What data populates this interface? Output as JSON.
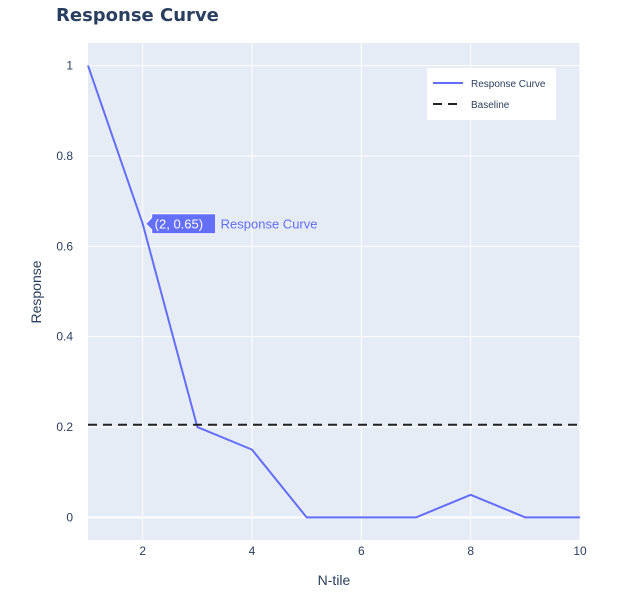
{
  "chart_data": {
    "type": "line",
    "title": "Response Curve",
    "xlabel": "N-tile",
    "ylabel": "Response",
    "xlim": [
      1,
      10
    ],
    "ylim": [
      -0.05,
      1.05
    ],
    "x_ticks": [
      2,
      4,
      6,
      8,
      10
    ],
    "y_ticks": [
      0,
      0.2,
      0.4,
      0.6,
      0.8,
      1
    ],
    "grid": true,
    "legend_position": "top-right",
    "series": [
      {
        "name": "Response Curve",
        "style": "solid",
        "color": "#636efa",
        "x": [
          1,
          2,
          3,
          4,
          5,
          6,
          7,
          8,
          9,
          10
        ],
        "y": [
          1,
          0.65,
          0.2,
          0.15,
          0,
          0,
          0,
          0.05,
          0,
          0
        ]
      },
      {
        "name": "Baseline",
        "style": "dashed",
        "color": "#222222",
        "x": [
          1,
          10
        ],
        "y": [
          0.205,
          0.205
        ]
      }
    ],
    "hover": {
      "x": 2,
      "y": 0.65,
      "label": "(2, 0.65)",
      "series_name": "Response Curve"
    }
  },
  "colors": {
    "plot_bg": "#e5ecf6",
    "grid": "#ffffff",
    "text": "#2a3f5f",
    "accent": "#636efa"
  }
}
